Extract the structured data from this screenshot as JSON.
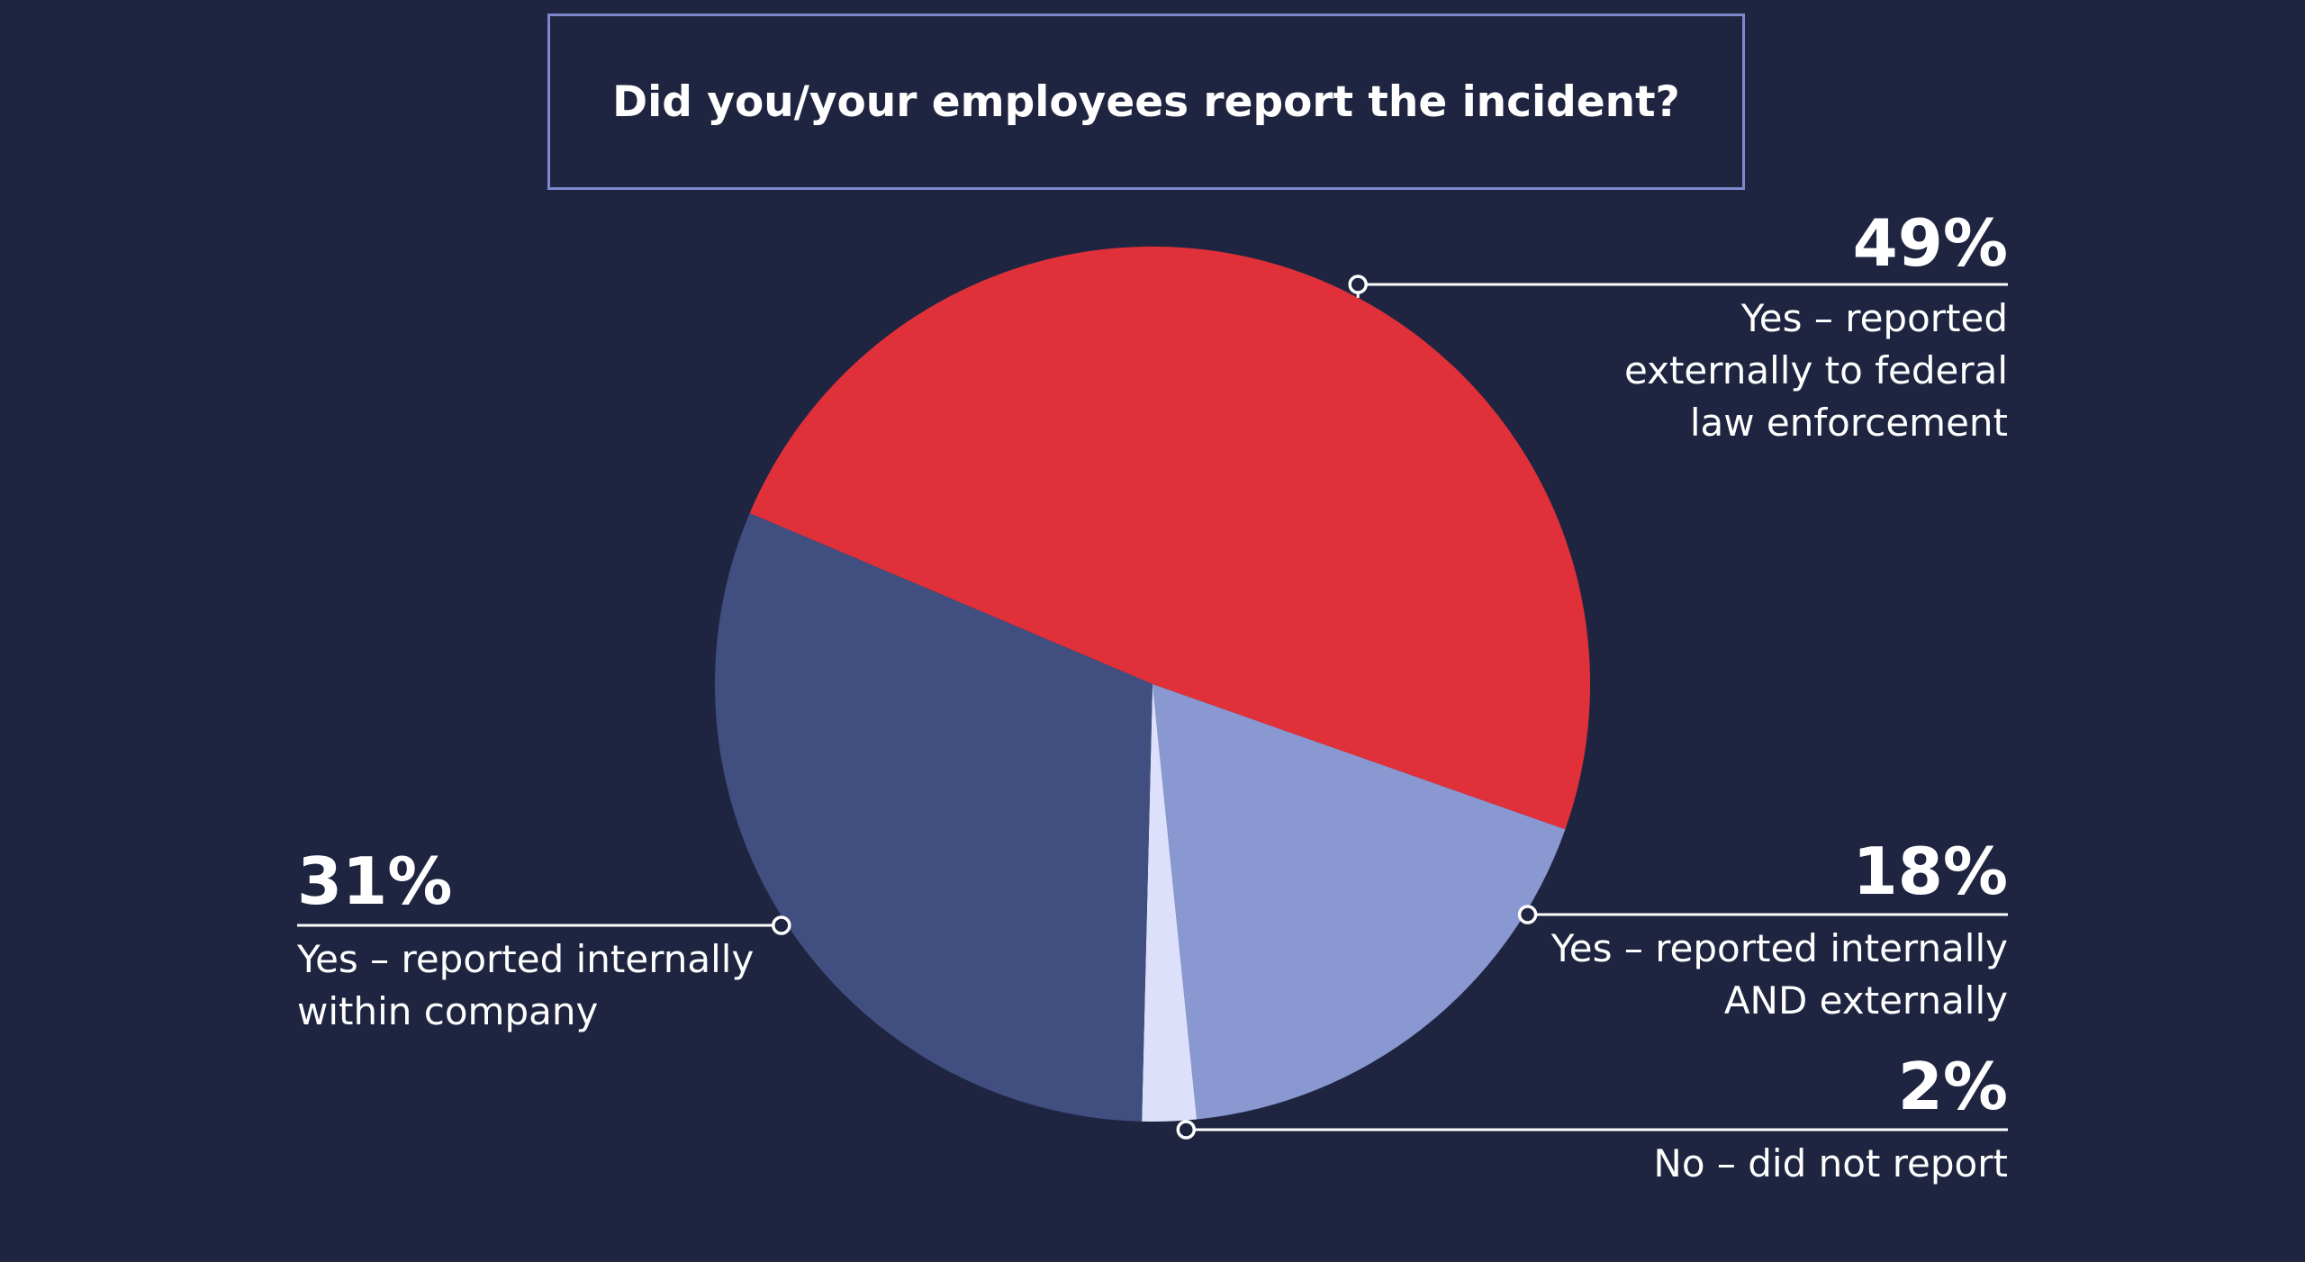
{
  "chart_data": {
    "type": "pie",
    "title": "Did you/your employees report the incident?",
    "start_angle_deg": -67,
    "direction": "clockwise",
    "slices": [
      {
        "label": "Yes – reported externally to federal law enforcement",
        "label_lines": [
          "Yes – reported",
          "externally to federal",
          "law enforcement"
        ],
        "value": 49,
        "display": "49%",
        "color": "#e0303a"
      },
      {
        "label": "Yes – reported internally AND externally",
        "label_lines": [
          "Yes – reported internally",
          "AND externally"
        ],
        "value": 18,
        "display": "18%",
        "color": "#8a98d2"
      },
      {
        "label": "No – did not report",
        "label_lines": [
          "No – did not report"
        ],
        "value": 2,
        "display": "2%",
        "color": "#dce0fa"
      },
      {
        "label": "Yes – reported internally within company",
        "label_lines": [
          "Yes – reported internally",
          "within company"
        ],
        "value": 31,
        "display": "31%",
        "color": "#414f80"
      }
    ]
  },
  "colors": {
    "background": "#1f2540",
    "title_border": "#7d88cc",
    "text": "#ffffff"
  }
}
